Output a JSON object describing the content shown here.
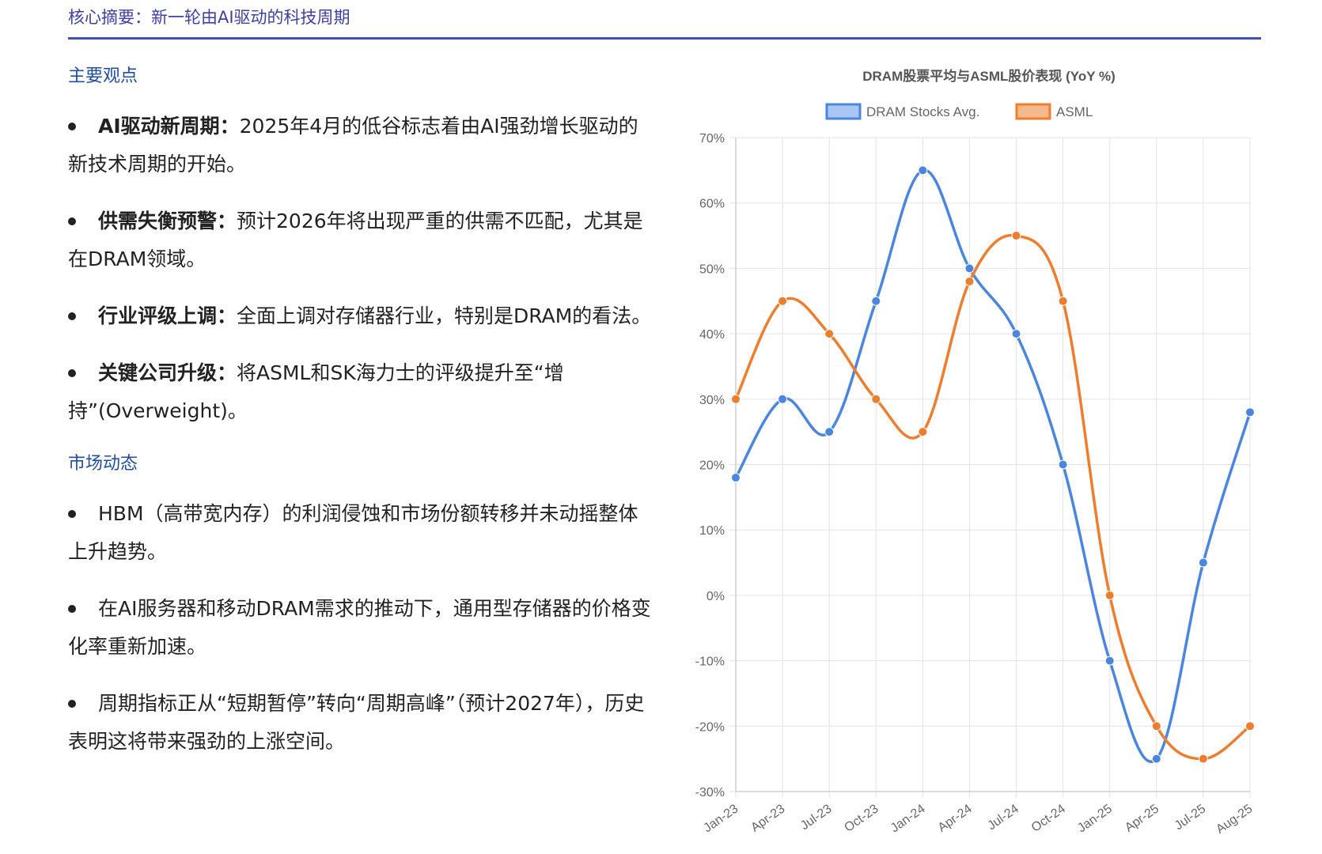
{
  "header": {
    "title": "核心摘要：新一轮由AI驱动的科技周期"
  },
  "sections": [
    {
      "title": "主要观点",
      "items": [
        {
          "label": "AI驱动新周期：",
          "text": "2025年4月的低谷标志着由AI强劲增长驱动的新技术周期的开始。"
        },
        {
          "label": "供需失衡预警：",
          "text": "预计2026年将出现严重的供需不匹配，尤其是在DRAM领域。"
        },
        {
          "label": "行业评级上调：",
          "text": "全面上调对存储器行业，特别是DRAM的看法。"
        },
        {
          "label": "关键公司升级：",
          "text": "将ASML和SK海力士的评级提升至“增持”(Overweight)。"
        }
      ]
    },
    {
      "title": "市场动态",
      "items": [
        {
          "label": "",
          "text": "HBM（高带宽内存）的利润侵蚀和市场份额转移并未动摇整体上升趋势。"
        },
        {
          "label": "",
          "text": "在AI服务器和移动DRAM需求的推动下，通用型存储器的价格变化率重新加速。"
        },
        {
          "label": "",
          "text": "周期指标正从“短期暂停”转向“周期高峰”（预计2027年），历史表明这将带来强劲的上涨空间。"
        }
      ]
    }
  ],
  "chart_data": {
    "type": "line",
    "title": "DRAM股票平均与ASML股价表现 (YoY %)",
    "x": [
      "Jan-23",
      "Apr-23",
      "Jul-23",
      "Oct-23",
      "Jan-24",
      "Apr-24",
      "Jul-24",
      "Oct-24",
      "Jan-25",
      "Apr-25",
      "Jul-25",
      "Aug-25"
    ],
    "series": [
      {
        "name": "DRAM Stocks Avg.",
        "color": "#4a86e0",
        "fill": "#a9c7f5",
        "values": [
          18,
          30,
          25,
          45,
          65,
          50,
          40,
          20,
          -10,
          -25,
          5,
          28
        ]
      },
      {
        "name": "ASML",
        "color": "#ee7d2e",
        "fill": "#f6b98c",
        "values": [
          30,
          45,
          40,
          30,
          25,
          48,
          55,
          45,
          0,
          -20,
          -25,
          -20
        ]
      }
    ],
    "y_ticks": [
      "70%",
      "60%",
      "50%",
      "40%",
      "30%",
      "20%",
      "10%",
      "0%",
      "-10%",
      "-20%",
      "-30%"
    ],
    "ylim": [
      -30,
      70
    ],
    "legend": "top",
    "grid": true
  }
}
